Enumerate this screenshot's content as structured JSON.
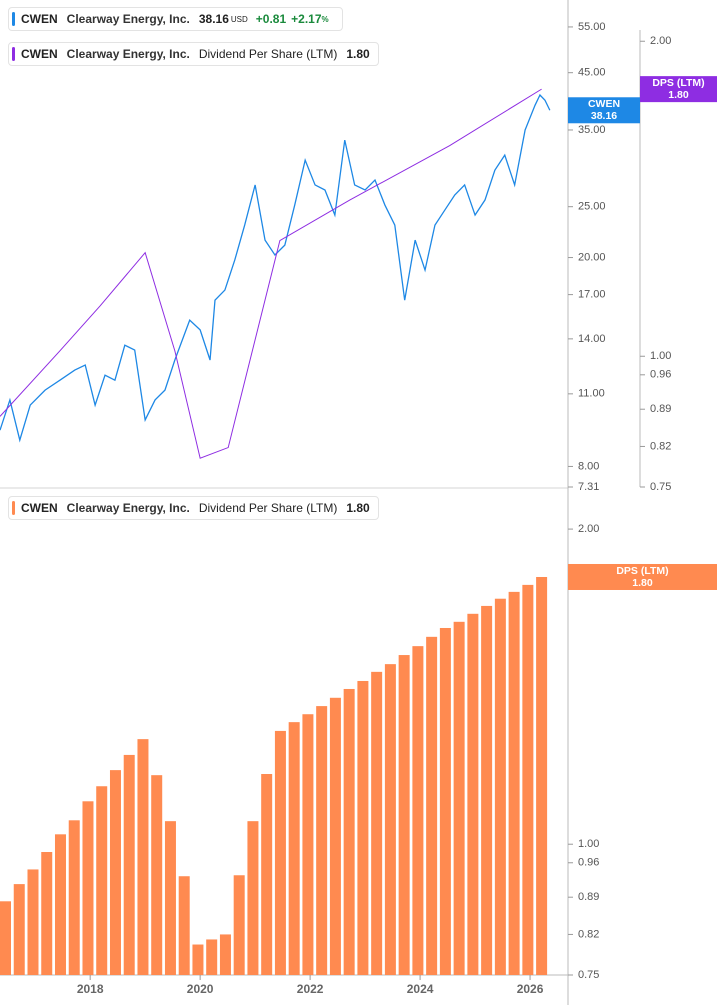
{
  "chart_data": [
    {
      "type": "line",
      "legends": [
        {
          "ticker": "CWEN",
          "name": "Clearway Energy, Inc.",
          "price": "38.16",
          "currency": "USD",
          "change": "+0.81",
          "change_percent": "+2.17",
          "percent_sign": "%"
        },
        {
          "ticker": "CWEN",
          "name": "Clearway Energy, Inc.",
          "indicator": "Dividend Per Share (LTM)",
          "value": "1.80"
        }
      ],
      "log_scale": true,
      "xlim": [
        2016.36,
        2026.69
      ],
      "ylim": [
        7.31,
        61.9
      ],
      "yticks": [
        {
          "value": 55,
          "label": "55.00"
        },
        {
          "value": 45,
          "label": "45.00"
        },
        {
          "value": 35,
          "label": "35.00"
        },
        {
          "value": 25,
          "label": "25.00"
        },
        {
          "value": 20,
          "label": "20.00"
        },
        {
          "value": 17,
          "label": "17.00"
        },
        {
          "value": 14,
          "label": "14.00"
        },
        {
          "value": 11,
          "label": "11.00"
        },
        {
          "value": 8,
          "label": "8.00"
        },
        7.31
      ],
      "y2lim": [
        0.75,
        2.19
      ],
      "y2ticks": [
        {
          "value": 2,
          "label": "2.00"
        },
        {
          "value": 1,
          "label": "1.00"
        },
        0.96,
        0.89,
        0.82,
        0.75
      ],
      "series": [
        {
          "name": "CWEN",
          "color": "#1e88e5",
          "last_label": "38.16",
          "x": [
            2016.36,
            2016.54,
            2016.72,
            2016.91,
            2017.18,
            2017.45,
            2017.72,
            2017.91,
            2018.09,
            2018.27,
            2018.45,
            2018.63,
            2018.81,
            2019.0,
            2019.18,
            2019.36,
            2019.54,
            2019.81,
            2020.0,
            2020.18,
            2020.27,
            2020.45,
            2020.63,
            2020.81,
            2021.0,
            2021.18,
            2021.36,
            2021.54,
            2021.72,
            2021.91,
            2022.09,
            2022.27,
            2022.45,
            2022.63,
            2022.81,
            2023.0,
            2023.18,
            2023.36,
            2023.54,
            2023.72,
            2023.91,
            2024.09,
            2024.27,
            2024.45,
            2024.63,
            2024.81,
            2025.0,
            2025.18,
            2025.36,
            2025.54,
            2025.72,
            2025.91,
            2026.09,
            2026.18,
            2026.27,
            2026.36
          ],
          "values": [
            9.38,
            10.71,
            8.98,
            10.47,
            11.18,
            11.68,
            12.21,
            12.48,
            10.47,
            11.94,
            11.68,
            13.62,
            13.33,
            9.81,
            10.71,
            11.18,
            12.76,
            15.2,
            14.56,
            12.76,
            16.59,
            17.34,
            19.79,
            23.06,
            27.5,
            21.59,
            20.23,
            21.12,
            25.18,
            30.66,
            27.5,
            26.9,
            24.1,
            33.48,
            27.5,
            26.9,
            28.1,
            25.18,
            23.06,
            16.59,
            21.59,
            18.93,
            23.06,
            24.63,
            26.31,
            27.5,
            24.1,
            25.74,
            29.34,
            31.34,
            27.5,
            35.0,
            39.0,
            40.8,
            39.9,
            38.16
          ]
        },
        {
          "name": "DPS (LTM)",
          "color": "#8e2de2",
          "axis": "y2",
          "last_label": "1.80",
          "x": [
            2016.36,
            2017.45,
            2018.18,
            2019.0,
            2019.54,
            2020.0,
            2020.51,
            2021.45,
            2022.72,
            2024.54,
            2026.21
          ],
          "values": [
            0.876,
            1.012,
            1.117,
            1.256,
            1.012,
            0.799,
            0.818,
            1.29,
            1.41,
            1.59,
            1.8
          ]
        }
      ]
    },
    {
      "type": "bar",
      "legends": [
        {
          "ticker": "CWEN",
          "name": "Clearway Energy, Inc.",
          "indicator": "Dividend Per Share (LTM)",
          "value": "1.80"
        }
      ],
      "log_scale": true,
      "xlim": [
        2016.36,
        2026.69
      ],
      "xticks": [
        2018,
        2020,
        2022,
        2024,
        2026
      ],
      "ylim": [
        0.75,
        2.17
      ],
      "yticks": [
        {
          "value": 2,
          "label": "2.00"
        },
        {
          "value": 1,
          "label": "1.00"
        },
        0.96,
        0.89,
        0.82,
        0.75
      ],
      "series": [
        {
          "name": "DPS (LTM)",
          "color": "#ff8a50",
          "last_label": "1.80",
          "x": [
            2016.46,
            2016.71,
            2016.96,
            2017.21,
            2017.46,
            2017.71,
            2017.96,
            2018.21,
            2018.46,
            2018.71,
            2018.96,
            2019.21,
            2019.46,
            2019.71,
            2019.96,
            2020.21,
            2020.46,
            2020.71,
            2020.96,
            2021.21,
            2021.46,
            2021.71,
            2021.96,
            2022.21,
            2022.46,
            2022.71,
            2022.96,
            2023.21,
            2023.46,
            2023.71,
            2023.96,
            2024.21,
            2024.46,
            2024.71,
            2024.96,
            2025.21,
            2025.46,
            2025.71,
            2025.96,
            2026.21
          ],
          "values": [
            0.882,
            0.916,
            0.946,
            0.983,
            1.022,
            1.054,
            1.099,
            1.136,
            1.177,
            1.217,
            1.26,
            1.164,
            1.052,
            0.932,
            0.802,
            0.811,
            0.82,
            0.934,
            1.052,
            1.167,
            1.283,
            1.308,
            1.331,
            1.355,
            1.38,
            1.407,
            1.432,
            1.461,
            1.486,
            1.516,
            1.546,
            1.578,
            1.609,
            1.631,
            1.66,
            1.689,
            1.716,
            1.742,
            1.769,
            1.8
          ]
        }
      ]
    }
  ]
}
